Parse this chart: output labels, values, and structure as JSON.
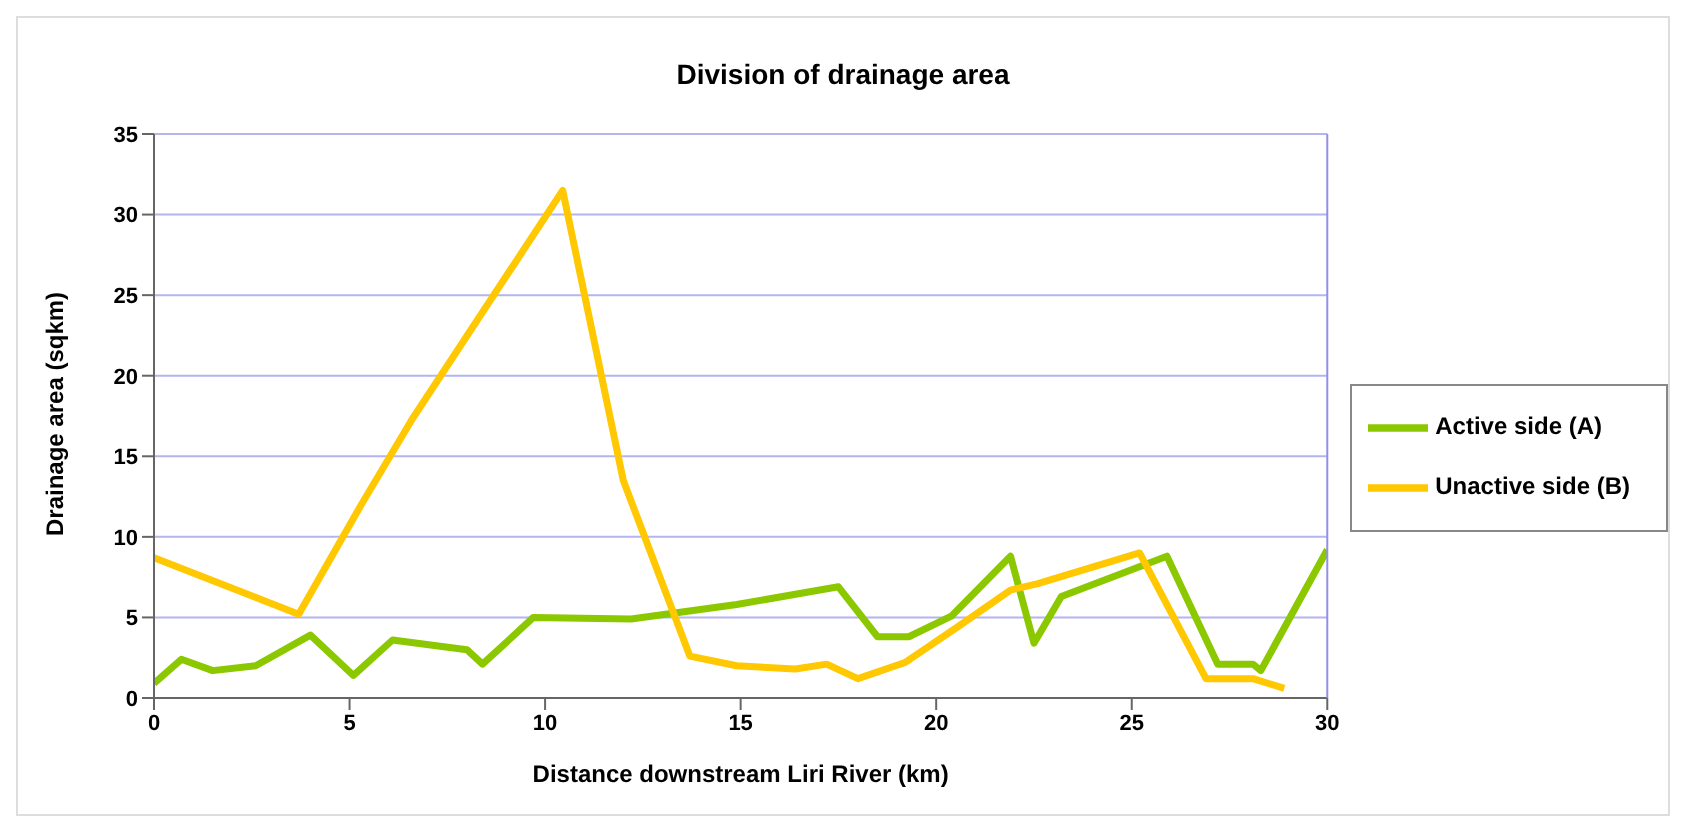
{
  "chart_data": {
    "type": "line",
    "title": "Division of drainage area",
    "xlabel": "Distance downstream Liri River (km)",
    "ylabel": "Drainage area (sqkm)",
    "xlim": [
      0,
      30
    ],
    "xticks": [
      0,
      5,
      10,
      15,
      20,
      25,
      30
    ],
    "ylim": [
      0,
      35
    ],
    "yticks": [
      0,
      5,
      10,
      15,
      20,
      25,
      30,
      35
    ],
    "grid": "y",
    "legend": "right",
    "marker": "none",
    "line_style": "solid",
    "series": [
      {
        "name": "Active side (A)",
        "color": "#8cc800",
        "x": [
          0,
          0.7,
          1.5,
          2.6,
          4.0,
          5.1,
          6.1,
          8.0,
          8.4,
          9.7,
          12.2,
          14.9,
          17.5,
          18.5,
          19.3,
          20.4,
          21.9,
          22.5,
          23.2,
          25.9,
          27.2,
          28.1,
          28.3,
          30
        ],
        "values": [
          0.9,
          2.4,
          1.7,
          2.0,
          3.9,
          1.4,
          3.6,
          3.0,
          2.1,
          5.0,
          4.9,
          5.8,
          6.9,
          3.8,
          3.8,
          5.1,
          8.8,
          3.4,
          6.3,
          8.8,
          2.1,
          2.1,
          1.7,
          9.2
        ]
      },
      {
        "name": "Unactive side (B)",
        "color": "#ffc800",
        "x": [
          0,
          3.7,
          5.3,
          6.6,
          10.45,
          12.0,
          13.7,
          14.9,
          16.4,
          17.2,
          18.0,
          19.2,
          20.6,
          21.9,
          22.6,
          25.2,
          26.9,
          28.1,
          28.9
        ],
        "values": [
          8.7,
          5.2,
          12.0,
          17.3,
          31.5,
          13.5,
          2.6,
          2.0,
          1.8,
          2.1,
          1.2,
          2.2,
          4.5,
          6.7,
          7.1,
          9.0,
          1.2,
          1.2,
          0.6
        ]
      }
    ]
  }
}
